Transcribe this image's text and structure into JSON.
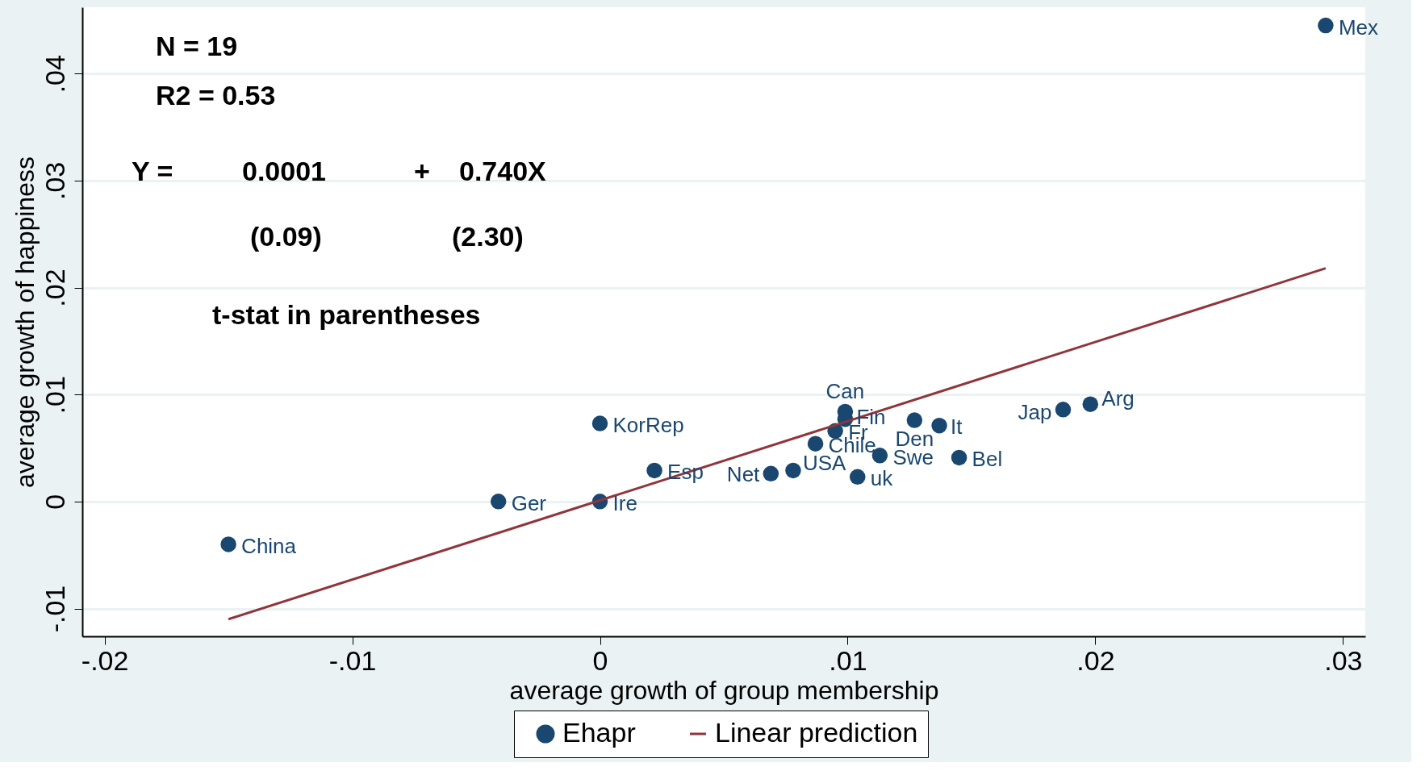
{
  "chart_data": {
    "type": "scatter",
    "xlabel": "average growth of group membership",
    "ylabel": "average growth of happiness",
    "xlim": [
      -0.0209,
      0.0309
    ],
    "ylim": [
      -0.0126,
      0.0462
    ],
    "xticks": [
      {
        "value": -0.02,
        "label": "-.02"
      },
      {
        "value": -0.01,
        "label": "-.01"
      },
      0,
      {
        "value": 0.01,
        "label": ".01"
      },
      {
        "value": 0.02,
        "label": ".02"
      },
      {
        "value": 0.03,
        "label": ".03"
      }
    ],
    "yticks": [
      {
        "value": -0.01,
        "label": "-.01"
      },
      0,
      {
        "value": 0.01,
        "label": ".01"
      },
      {
        "value": 0.02,
        "label": ".02"
      },
      {
        "value": 0.03,
        "label": ".03"
      },
      {
        "value": 0.04,
        "label": ".04"
      }
    ],
    "grid": "y",
    "legend": "bottom",
    "marker": "circle",
    "series": [
      {
        "name": "Ehapr",
        "type": "scatter",
        "color": "#1a476f",
        "x": [
          0.0293,
          0.0198,
          0.0187,
          0.0099,
          0.0099,
          0.0127,
          0.0137,
          0.0095,
          0.0087,
          0.0113,
          0.0145,
          0.0078,
          0.0069,
          0.0104,
          0.0022,
          0,
          -0.0041,
          0,
          -0.015
        ],
        "values": [
          0.0445,
          0.0091,
          0.0086,
          0.0084,
          0.0077,
          0.0076,
          0.0071,
          0.0066,
          0.0054,
          0.0043,
          0.0041,
          0.0029,
          0.0026,
          0.0023,
          0.0029,
          0.0073,
          0,
          0,
          -0.004
        ]
      },
      {
        "name": "Linear prediction",
        "type": "line",
        "color": "#90353b",
        "marker": "none",
        "x": [
          -0.015,
          0.0293
        ],
        "values": [
          -0.011,
          0.0218
        ]
      }
    ],
    "annotations": [
      {
        "text": "Mex",
        "x": 0.0293,
        "y": 0.0445
      },
      {
        "text": "Arg",
        "x": 0.0198,
        "y": 0.0091
      },
      {
        "text": "Jap",
        "x": 0.0187,
        "y": 0.0086
      },
      {
        "text": "Can",
        "x": 0.0099,
        "y": 0.0084
      },
      {
        "text": "Fin",
        "x": 0.0099,
        "y": 0.0077
      },
      {
        "text": "Den",
        "x": 0.0127,
        "y": 0.0076
      },
      {
        "text": "It",
        "x": 0.0137,
        "y": 0.0071
      },
      {
        "text": "Fr",
        "x": 0.0095,
        "y": 0.0066
      },
      {
        "text": "Chile",
        "x": 0.0087,
        "y": 0.0054
      },
      {
        "text": "Swe",
        "x": 0.0113,
        "y": 0.0043
      },
      {
        "text": "Bel",
        "x": 0.0145,
        "y": 0.0041
      },
      {
        "text": "USA",
        "x": 0.0078,
        "y": 0.0029
      },
      {
        "text": "Net",
        "x": 0.0069,
        "y": 0.0026
      },
      {
        "text": "uk",
        "x": 0.0104,
        "y": 0.0023
      },
      {
        "text": "Esp",
        "x": 0.0022,
        "y": 0.0029
      },
      {
        "text": "KorRep",
        "x": 0,
        "y": 0.0073
      },
      {
        "text": "Ger",
        "x": -0.0041,
        "y": 0
      },
      {
        "text": "Ire",
        "x": 0,
        "y": 0
      },
      {
        "text": "China",
        "x": -0.015,
        "y": -0.004
      },
      "N = 19",
      "R2 = 0.53",
      "Y =",
      "0.0001",
      "+",
      "0.740X",
      "(0.09)",
      "(2.30)",
      "t-stat in parentheses"
    ]
  }
}
